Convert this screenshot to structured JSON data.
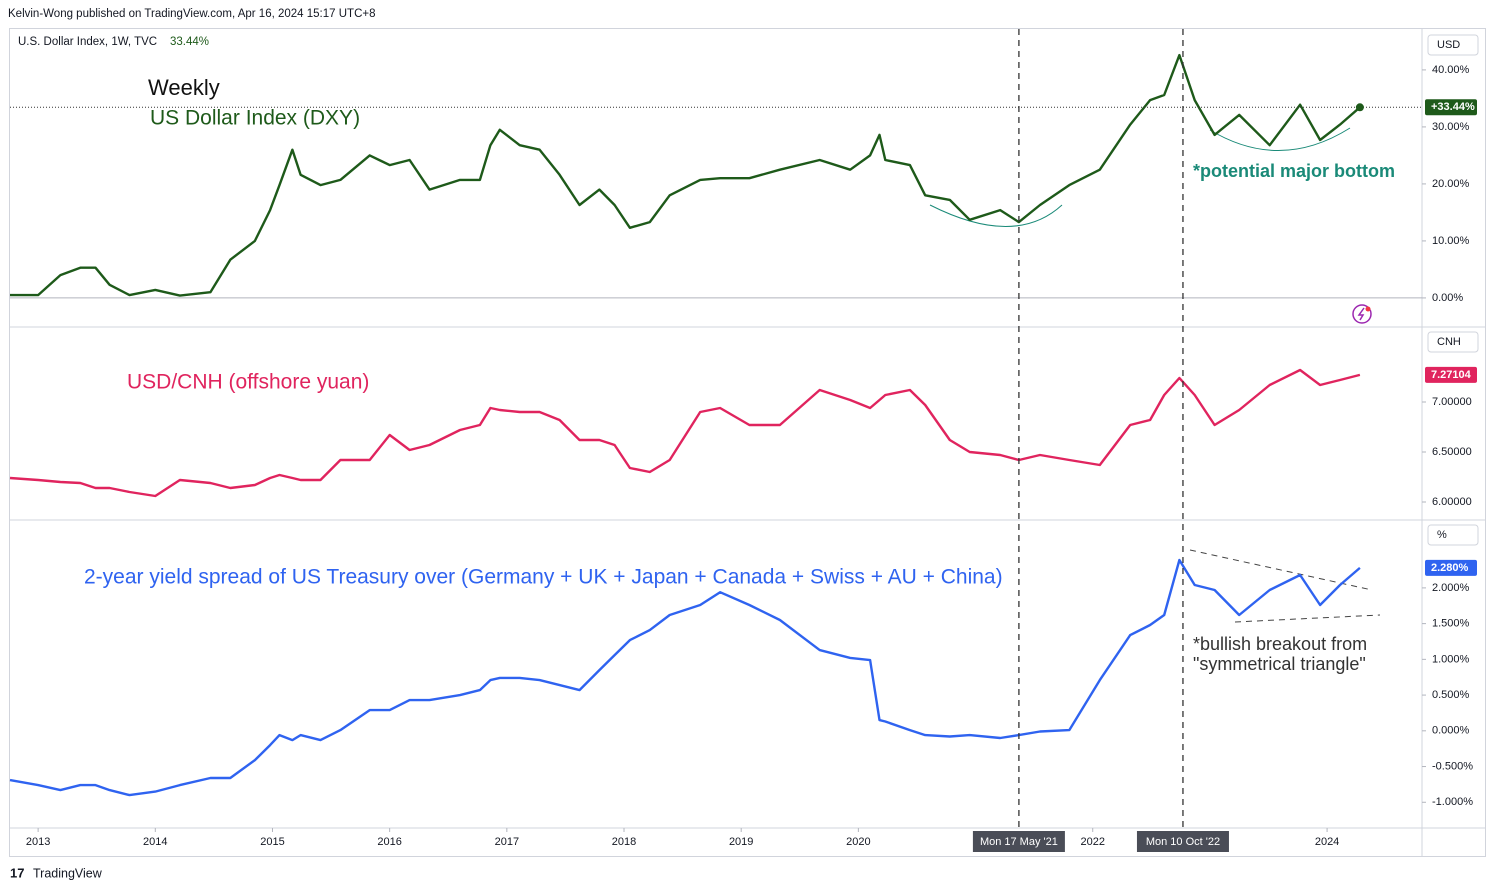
{
  "publisher": "Kelvin-Wong published on TradingView.com, Apr 16, 2024 15:17 UTC+8",
  "footer": "TradingView",
  "chart_data": [
    {
      "type": "line",
      "legend_title": "U.S. Dollar Index, 1W, TVC",
      "legend_value": "33.44%",
      "axis_label": "USD",
      "annotations": [
        "Weekly",
        "US Dollar Index (DXY)",
        "*potential major bottom"
      ],
      "price_line": true,
      "last_value": 33.44,
      "last_label": "+33.44%",
      "xlim": [
        2012.76,
        2024.81
      ],
      "ylim": [
        -5.1,
        47
      ],
      "yticks": [
        {
          "value": 0,
          "label": "0.00%"
        },
        {
          "value": 10,
          "label": "10.00%"
        },
        {
          "value": 20,
          "label": "20.00%"
        },
        {
          "value": 30,
          "label": "30.00%"
        },
        {
          "value": 40,
          "label": "40.00%"
        }
      ],
      "x": [
        2012.76,
        2013.0,
        2013.19,
        2013.36,
        2013.49,
        2013.61,
        2013.78,
        2014.0,
        2014.21,
        2014.47,
        2014.64,
        2014.85,
        2014.98,
        2015.06,
        2015.17,
        2015.24,
        2015.41,
        2015.58,
        2015.83,
        2016.0,
        2016.17,
        2016.34,
        2016.6,
        2016.77,
        2016.86,
        2016.94,
        2017.11,
        2017.28,
        2017.45,
        2017.62,
        2017.79,
        2017.92,
        2018.05,
        2018.22,
        2018.39,
        2018.65,
        2018.82,
        2019.07,
        2019.33,
        2019.67,
        2019.93,
        2020.1,
        2020.18,
        2020.23,
        2020.44,
        2020.57,
        2020.78,
        2020.95,
        2021.21,
        2021.37,
        2021.55,
        2021.8,
        2022.06,
        2022.32,
        2022.49,
        2022.61,
        2022.74,
        2022.87,
        2023.04,
        2023.25,
        2023.51,
        2023.77,
        2023.94,
        2024.11,
        2024.28
      ],
      "series": [
        {
          "name": "U.S. Dollar Index",
          "color": "#1e5a1a",
          "values": [
            0.5,
            0.5,
            4,
            5.3,
            5.3,
            2.3,
            0.5,
            1.4,
            0.4,
            1,
            6.7,
            10,
            15.4,
            19.8,
            26,
            21.6,
            19.8,
            20.7,
            25,
            23.3,
            24.2,
            19,
            20.7,
            20.7,
            26.8,
            29.5,
            26.8,
            26,
            21.6,
            16.3,
            19,
            16.3,
            12.3,
            13.3,
            18,
            20.7,
            21,
            21,
            22.5,
            24.2,
            22.5,
            25,
            28.6,
            24.2,
            23.3,
            18,
            17.2,
            13.7,
            15.4,
            13.3,
            16.3,
            19.8,
            22.5,
            30.4,
            34.7,
            35.6,
            42.6,
            34.7,
            28.6,
            32.1,
            26.8,
            33.9,
            27.7,
            30.4,
            33.44
          ]
        }
      ]
    },
    {
      "type": "line",
      "axis_label": "CNH",
      "annotations": [
        "USD/CNH (offshore yuan)"
      ],
      "last_value": 7.27104,
      "last_label": "7.27104",
      "xlim": [
        2012.76,
        2024.81
      ],
      "ylim": [
        5.82,
        7.75
      ],
      "yticks": [
        {
          "value": 6,
          "label": "6.00000"
        },
        {
          "value": 6.5,
          "label": "6.50000"
        },
        {
          "value": 7,
          "label": "7.00000"
        }
      ],
      "x": [
        2012.76,
        2013.0,
        2013.19,
        2013.36,
        2013.49,
        2013.61,
        2013.78,
        2014.0,
        2014.21,
        2014.47,
        2014.64,
        2014.85,
        2014.98,
        2015.06,
        2015.17,
        2015.24,
        2015.41,
        2015.58,
        2015.83,
        2016.0,
        2016.17,
        2016.34,
        2016.6,
        2016.77,
        2016.86,
        2016.94,
        2017.11,
        2017.28,
        2017.45,
        2017.62,
        2017.79,
        2017.92,
        2018.05,
        2018.22,
        2018.39,
        2018.65,
        2018.82,
        2019.07,
        2019.33,
        2019.67,
        2019.93,
        2020.1,
        2020.18,
        2020.23,
        2020.44,
        2020.57,
        2020.78,
        2020.95,
        2021.21,
        2021.37,
        2021.55,
        2021.8,
        2022.06,
        2022.32,
        2022.49,
        2022.61,
        2022.74,
        2022.87,
        2023.04,
        2023.25,
        2023.51,
        2023.77,
        2023.94,
        2024.11,
        2024.28
      ],
      "series": [
        {
          "name": "USD/CNH",
          "color": "#e0245e",
          "values": [
            6.24,
            6.22,
            6.2,
            6.19,
            6.14,
            6.14,
            6.1,
            6.06,
            6.22,
            6.19,
            6.14,
            6.17,
            6.24,
            6.27,
            6.24,
            6.22,
            6.22,
            6.42,
            6.42,
            6.67,
            6.52,
            6.57,
            6.72,
            6.77,
            6.94,
            6.92,
            6.9,
            6.9,
            6.82,
            6.62,
            6.62,
            6.57,
            6.34,
            6.3,
            6.42,
            6.9,
            6.94,
            6.77,
            6.77,
            7.12,
            7.02,
            6.94,
            7.02,
            7.07,
            7.12,
            6.97,
            6.62,
            6.5,
            6.47,
            6.42,
            6.47,
            6.42,
            6.37,
            6.77,
            6.82,
            7.07,
            7.24,
            7.07,
            6.77,
            6.92,
            7.17,
            7.32,
            7.17,
            7.22,
            7.27104
          ]
        }
      ]
    },
    {
      "type": "line",
      "axis_label": "%",
      "annotations": [
        "2-year yield spread of US Treasury over (Germany + UK + Japan + Canada + Swiss + AU + China)",
        "*bullish breakout from",
        "\"symmetrical triangle\""
      ],
      "last_value": 2.28,
      "last_label": "2.280%",
      "xlim": [
        2012.76,
        2024.81
      ],
      "ylim": [
        -1.36,
        2.95
      ],
      "yticks": [
        {
          "value": -1,
          "label": "-1.000%"
        },
        {
          "value": -0.5,
          "label": "-0.500%"
        },
        {
          "value": 0,
          "label": "0.000%"
        },
        {
          "value": 0.5,
          "label": "0.500%"
        },
        {
          "value": 1,
          "label": "1.000%"
        },
        {
          "value": 1.5,
          "label": "1.500%"
        },
        {
          "value": 2,
          "label": "2.000%"
        }
      ],
      "xticks": [
        2013,
        2014,
        2015,
        2016,
        2017,
        2018,
        2019,
        2020,
        2022,
        2024
      ],
      "events": [
        {
          "x": 2021.37,
          "label": "Mon 17 May '21"
        },
        {
          "x": 2022.77,
          "label": "Mon 10 Oct '22"
        }
      ],
      "x": [
        2012.76,
        2013.0,
        2013.19,
        2013.36,
        2013.49,
        2013.61,
        2013.78,
        2014.0,
        2014.21,
        2014.47,
        2014.64,
        2014.85,
        2014.98,
        2015.06,
        2015.17,
        2015.24,
        2015.41,
        2015.58,
        2015.83,
        2016.0,
        2016.17,
        2016.34,
        2016.6,
        2016.77,
        2016.86,
        2016.94,
        2017.11,
        2017.28,
        2017.45,
        2017.62,
        2017.79,
        2017.92,
        2018.05,
        2018.22,
        2018.39,
        2018.65,
        2018.82,
        2019.07,
        2019.33,
        2019.67,
        2019.93,
        2020.1,
        2020.18,
        2020.23,
        2020.44,
        2020.57,
        2020.78,
        2020.95,
        2021.21,
        2021.37,
        2021.55,
        2021.8,
        2022.06,
        2022.32,
        2022.49,
        2022.61,
        2022.74,
        2022.87,
        2023.04,
        2023.25,
        2023.51,
        2023.77,
        2023.94,
        2024.11,
        2024.28
      ],
      "series": [
        {
          "name": "2-year yield spread",
          "color": "#2f63f0",
          "values": [
            -0.69,
            -0.76,
            -0.83,
            -0.76,
            -0.76,
            -0.83,
            -0.9,
            -0.85,
            -0.76,
            -0.66,
            -0.66,
            -0.41,
            -0.2,
            -0.06,
            -0.13,
            -0.06,
            -0.13,
            0.01,
            0.29,
            0.29,
            0.43,
            0.43,
            0.5,
            0.57,
            0.71,
            0.74,
            0.74,
            0.71,
            0.64,
            0.57,
            0.85,
            1.06,
            1.27,
            1.41,
            1.62,
            1.76,
            1.94,
            1.76,
            1.55,
            1.13,
            1.02,
            0.99,
            0.15,
            0.13,
            0.01,
            -0.06,
            -0.08,
            -0.06,
            -0.1,
            -0.06,
            -0.01,
            0.01,
            0.71,
            1.34,
            1.48,
            1.62,
            2.39,
            2.04,
            1.97,
            1.62,
            1.97,
            2.18,
            1.76,
            2.04,
            2.28
          ]
        }
      ]
    }
  ]
}
